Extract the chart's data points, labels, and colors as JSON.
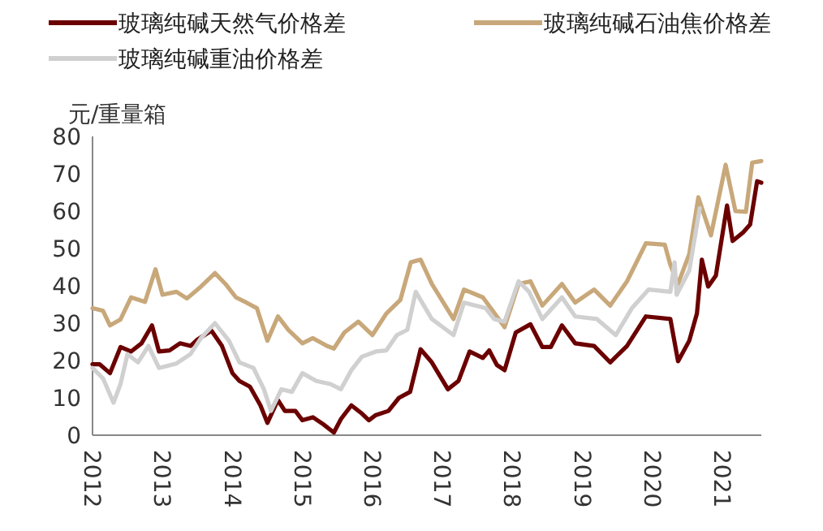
{
  "chart_data": {
    "type": "line",
    "ylabel": "元/重量箱",
    "xlim": [
      2012,
      2021.56
    ],
    "ylim": [
      0,
      80
    ],
    "xticks": [
      2012,
      2013,
      2014,
      2015,
      2016,
      2017,
      2018,
      2019,
      2020,
      2021
    ],
    "yticks": [
      0,
      10,
      20,
      30,
      40,
      50,
      60,
      70,
      80
    ],
    "grid": false,
    "legend": "top",
    "line_style": "solid",
    "marker": "none",
    "series": [
      {
        "name": "玻璃纯碱天然气价格差",
        "color": "#6b0000",
        "x": [
          2012,
          2012.1,
          2012.25,
          2012.4,
          2012.55,
          2012.7,
          2012.85,
          2012.95,
          2013.1,
          2013.25,
          2013.4,
          2013.5,
          2013.7,
          2013.85,
          2014,
          2014.1,
          2014.25,
          2014.4,
          2014.5,
          2014.65,
          2014.75,
          2014.9,
          2015,
          2015.15,
          2015.3,
          2015.45,
          2015.55,
          2015.7,
          2015.85,
          2015.95,
          2016.05,
          2016.23,
          2016.38,
          2016.54,
          2016.69,
          2016.85,
          2017.08,
          2017.23,
          2017.39,
          2017.58,
          2017.67,
          2017.78,
          2017.89,
          2018.05,
          2018.26,
          2018.43,
          2018.55,
          2018.71,
          2018.9,
          2019.17,
          2019.4,
          2019.64,
          2019.91,
          2020.26,
          2020.37,
          2020.53,
          2020.64,
          2020.71,
          2020.8,
          2020.91,
          2021.07,
          2021.15,
          2021.3,
          2021.4,
          2021.5,
          2021.56
        ],
        "values": [
          19,
          19,
          16.6,
          23.6,
          22.4,
          24.6,
          29.4,
          22.4,
          22.7,
          24.6,
          23.9,
          25.6,
          28,
          23.9,
          16.6,
          14.5,
          13,
          8,
          3.3,
          9.4,
          6.5,
          6.5,
          4,
          4.8,
          2.9,
          0.7,
          4.3,
          8,
          5.8,
          4,
          5.4,
          6.5,
          10,
          11.6,
          23,
          19.5,
          12.3,
          14.5,
          22.4,
          20.7,
          22.7,
          18.8,
          17.4,
          27.5,
          29.7,
          23.6,
          23.6,
          29.4,
          24.6,
          23.9,
          19.5,
          23.9,
          31.8,
          31.1,
          19.8,
          25.3,
          32.6,
          47,
          39.8,
          42.7,
          61.5,
          52,
          54.3,
          56.4,
          68,
          67.6
        ]
      },
      {
        "name": "玻璃纯碱石油焦价格差",
        "color": "#c8a87a",
        "x": [
          2012,
          2012.15,
          2012.25,
          2012.4,
          2012.55,
          2012.75,
          2012.9,
          2013,
          2013.2,
          2013.35,
          2013.55,
          2013.75,
          2013.9,
          2014.05,
          2014.2,
          2014.35,
          2014.5,
          2014.65,
          2014.8,
          2015,
          2015.15,
          2015.35,
          2015.45,
          2015.6,
          2015.8,
          2016,
          2016.2,
          2016.4,
          2016.55,
          2016.69,
          2016.85,
          2017.16,
          2017.31,
          2017.58,
          2017.78,
          2017.89,
          2018.09,
          2018.26,
          2018.43,
          2018.71,
          2018.9,
          2019.17,
          2019.4,
          2019.64,
          2019.91,
          2020.18,
          2020.26,
          2020.37,
          2020.53,
          2020.66,
          2020.84,
          2021.05,
          2021.19,
          2021.34,
          2021.43,
          2021.56
        ],
        "values": [
          34,
          33.3,
          29.4,
          31,
          36.9,
          35.7,
          44.4,
          37.6,
          38.4,
          36.6,
          39.8,
          43.4,
          40.5,
          36.9,
          35.5,
          34,
          25.3,
          31.8,
          28.2,
          24.6,
          26,
          23.9,
          23.2,
          27.5,
          30.4,
          26.8,
          32.6,
          36.2,
          46.3,
          47,
          40.5,
          31.1,
          39,
          36.9,
          31.8,
          28.9,
          40.5,
          41.2,
          34.7,
          40.5,
          35.5,
          39,
          34.7,
          41.2,
          51.4,
          51,
          45.6,
          40.5,
          48.5,
          63.7,
          53.5,
          72.4,
          60,
          59.8,
          73,
          73.4
        ]
      },
      {
        "name": "玻璃纯碱重油价格差",
        "color": "#d0d0d0",
        "x": [
          2012,
          2012.15,
          2012.3,
          2012.4,
          2012.5,
          2012.65,
          2012.8,
          2012.95,
          2013.2,
          2013.4,
          2013.55,
          2013.75,
          2013.95,
          2014.1,
          2014.3,
          2014.45,
          2014.55,
          2014.7,
          2014.85,
          2015,
          2015.2,
          2015.4,
          2015.55,
          2015.7,
          2015.85,
          2016.05,
          2016.2,
          2016.35,
          2016.5,
          2016.62,
          2016.85,
          2017.16,
          2017.31,
          2017.62,
          2017.74,
          2017.89,
          2018.09,
          2018.24,
          2018.43,
          2018.71,
          2018.9,
          2019.21,
          2019.48,
          2019.71,
          2019.95,
          2020.26,
          2020.32,
          2020.35,
          2020.53,
          2020.68
        ],
        "values": [
          18,
          15.2,
          8.7,
          13.7,
          21.7,
          19.5,
          23.9,
          18,
          19.2,
          21.7,
          26,
          30,
          25.3,
          19.5,
          18,
          12.3,
          6.5,
          12.3,
          11.6,
          16.6,
          14.5,
          13.7,
          12.3,
          17.4,
          21,
          22.4,
          22.7,
          26.8,
          28.2,
          38.4,
          31.1,
          26.8,
          35.5,
          34,
          31.1,
          30.4,
          41.2,
          38.4,
          31.1,
          36.9,
          31.8,
          31.1,
          26.8,
          34,
          39,
          38.4,
          46.3,
          37.6,
          44.1,
          60.8
        ]
      }
    ]
  }
}
